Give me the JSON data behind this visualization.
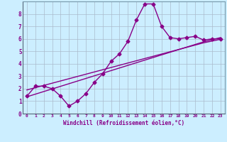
{
  "x": [
    0,
    1,
    2,
    3,
    4,
    5,
    6,
    7,
    8,
    9,
    10,
    11,
    12,
    13,
    14,
    15,
    16,
    17,
    18,
    19,
    20,
    21,
    22,
    23
  ],
  "y_zigzag": [
    1.4,
    2.2,
    2.2,
    2.0,
    1.4,
    0.6,
    1.0,
    1.6,
    2.5,
    3.2,
    4.2,
    4.8,
    5.8,
    7.5,
    8.8,
    8.8,
    7.0,
    6.1,
    6.0,
    6.1,
    6.2,
    5.9,
    6.0,
    6.0
  ],
  "y_line1": [
    1.35,
    1.56,
    1.77,
    1.98,
    2.19,
    2.4,
    2.61,
    2.82,
    3.03,
    3.24,
    3.45,
    3.66,
    3.87,
    4.08,
    4.29,
    4.5,
    4.71,
    4.92,
    5.13,
    5.34,
    5.55,
    5.76,
    5.93,
    6.1
  ],
  "y_line2": [
    1.9,
    2.08,
    2.26,
    2.44,
    2.62,
    2.8,
    2.98,
    3.16,
    3.34,
    3.52,
    3.7,
    3.88,
    4.06,
    4.24,
    4.42,
    4.6,
    4.78,
    4.96,
    5.14,
    5.32,
    5.5,
    5.68,
    5.82,
    5.96
  ],
  "line_color": "#880088",
  "bg_color": "#cceeff",
  "grid_color": "#aabbcc",
  "xlabel": "Windchill (Refroidissement éolien,°C)",
  "xlim": [
    -0.5,
    23.5
  ],
  "ylim": [
    0,
    9
  ],
  "xticks": [
    0,
    1,
    2,
    3,
    4,
    5,
    6,
    7,
    8,
    9,
    10,
    11,
    12,
    13,
    14,
    15,
    16,
    17,
    18,
    19,
    20,
    21,
    22,
    23
  ],
  "yticks": [
    0,
    1,
    2,
    3,
    4,
    5,
    6,
    7,
    8
  ],
  "marker": "D",
  "markersize": 2.5,
  "linewidth": 1.0
}
